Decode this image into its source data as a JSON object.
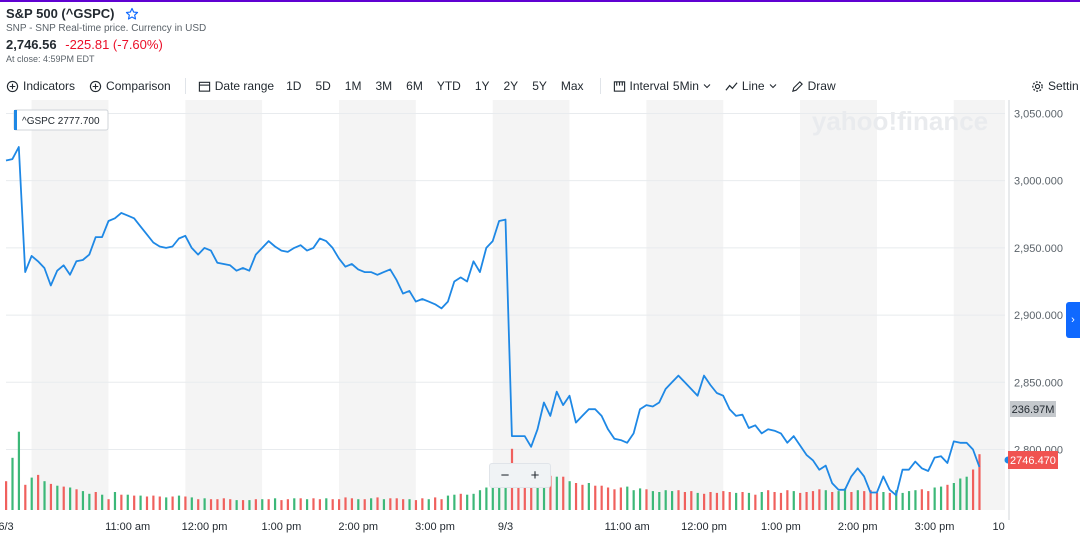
{
  "header": {
    "title": "S&P 500 (^GSPC)",
    "subtitle": "SNP - SNP Real-time price. Currency in USD",
    "price": "2,746.56",
    "change": "-225.81 (-7.60%)",
    "close_time": "At close: 4:59PM EDT"
  },
  "toolbar": {
    "indicators": "Indicators",
    "comparison": "Comparison",
    "date_range": "Date range",
    "ranges": [
      "1D",
      "5D",
      "1M",
      "3M",
      "6M",
      "YTD",
      "1Y",
      "2Y",
      "5Y",
      "Max"
    ],
    "interval_label": "Interval",
    "interval_value": "5Min",
    "chart_type": "Line",
    "draw": "Draw",
    "settings": "Settin"
  },
  "watermark": "yahoo!finance",
  "zoom": {
    "minus": "−",
    "plus": "+"
  },
  "colors": {
    "line": "#1e88e5",
    "vol_up": "#3cb878",
    "vol_down": "#f0605d",
    "price_badge": "#f05350",
    "shade": "#f4f4f4"
  },
  "chart_data": {
    "type": "line",
    "series": [
      {
        "name": "^GSPC",
        "tooltip": "^GSPC  2777.700"
      }
    ],
    "ylim": [
      2755,
      3060
    ],
    "y_ticks": [
      3050,
      3000,
      2950,
      2900,
      2850,
      2800
    ],
    "y_tick_labels": [
      "3,050.000",
      "3,000.000",
      "2,950.000",
      "2,900.000",
      "2,850.000",
      "2,800.000"
    ],
    "x_ticks": [
      {
        "label": "6/3",
        "x": 0
      },
      {
        "label": "11:00 am",
        "x": 19
      },
      {
        "label": "12:00 pm",
        "x": 31
      },
      {
        "label": "1:00 pm",
        "x": 43
      },
      {
        "label": "2:00 pm",
        "x": 55
      },
      {
        "label": "3:00 pm",
        "x": 67
      },
      {
        "label": "9/3",
        "x": 78
      },
      {
        "label": "11:00 am",
        "x": 97
      },
      {
        "label": "12:00 pm",
        "x": 109
      },
      {
        "label": "1:00 pm",
        "x": 121
      },
      {
        "label": "2:00 pm",
        "x": 133
      },
      {
        "label": "3:00 pm",
        "x": 145
      },
      {
        "label": "10",
        "x": 155
      }
    ],
    "x_max": 156,
    "bands": [
      [
        4,
        16
      ],
      [
        28,
        40
      ],
      [
        52,
        64
      ],
      [
        76,
        88
      ],
      [
        100,
        112
      ],
      [
        124,
        136
      ],
      [
        148,
        156
      ]
    ],
    "price_values": [
      3015,
      3016,
      3025,
      2932,
      2944,
      2940,
      2935,
      2922,
      2933,
      2937,
      2930,
      2940,
      2941,
      2945,
      2958,
      2958,
      2970,
      2972,
      2976,
      2974,
      2972,
      2966,
      2960,
      2954,
      2951,
      2950,
      2951,
      2957,
      2959,
      2950,
      2945,
      2950,
      2948,
      2939,
      2938,
      2937,
      2933,
      2935,
      2933,
      2945,
      2950,
      2955,
      2951,
      2948,
      2947,
      2950,
      2952,
      2948,
      2950,
      2957,
      2955,
      2950,
      2942,
      2936,
      2938,
      2934,
      2932,
      2932,
      2930,
      2932,
      2934,
      2926,
      2916,
      2918,
      2910,
      2912,
      2910,
      2908,
      2905,
      2910,
      2925,
      2928,
      2925,
      2940,
      2932,
      2950,
      2955,
      2970,
      2971,
      2810,
      2810,
      2810,
      2802,
      2815,
      2835,
      2825,
      2843,
      2833,
      2840,
      2820,
      2825,
      2830,
      2830,
      2825,
      2815,
      2808,
      2807,
      2805,
      2812,
      2830,
      2833,
      2832,
      2835,
      2845,
      2850,
      2855,
      2850,
      2845,
      2840,
      2855,
      2848,
      2842,
      2840,
      2830,
      2825,
      2826,
      2816,
      2818,
      2812,
      2815,
      2814,
      2812,
      2805,
      2810,
      2803,
      2796,
      2792,
      2785,
      2788,
      2775,
      2770,
      2770,
      2780,
      2786,
      2780,
      2768,
      2768,
      2780,
      2770,
      2766,
      2785,
      2785,
      2791,
      2786,
      2784,
      2794,
      2795,
      2790,
      2806,
      2805,
      2805,
      2800,
      2787
    ],
    "current_price": "2746.470",
    "volume_label": "236.97M",
    "volume_values": [
      0.32,
      0.58,
      0.87,
      0.28,
      0.36,
      0.39,
      0.32,
      0.29,
      0.27,
      0.26,
      0.25,
      0.23,
      0.21,
      0.18,
      0.2,
      0.17,
      0.12,
      0.2,
      0.17,
      0.17,
      0.16,
      0.16,
      0.15,
      0.16,
      0.15,
      0.14,
      0.15,
      0.16,
      0.15,
      0.14,
      0.12,
      0.13,
      0.12,
      0.12,
      0.13,
      0.12,
      0.11,
      0.11,
      0.11,
      0.12,
      0.12,
      0.12,
      0.13,
      0.11,
      0.12,
      0.13,
      0.13,
      0.12,
      0.13,
      0.12,
      0.13,
      0.12,
      0.12,
      0.14,
      0.13,
      0.12,
      0.12,
      0.13,
      0.14,
      0.12,
      0.13,
      0.13,
      0.12,
      0.12,
      0.11,
      0.13,
      0.12,
      0.14,
      0.12,
      0.16,
      0.17,
      0.18,
      0.17,
      0.18,
      0.22,
      0.25,
      0.27,
      0.33,
      0.48,
      0.68,
      0.28,
      0.3,
      0.29,
      0.33,
      0.37,
      0.38,
      0.37,
      0.37,
      0.32,
      0.3,
      0.28,
      0.3,
      0.27,
      0.27,
      0.25,
      0.23,
      0.25,
      0.26,
      0.22,
      0.24,
      0.23,
      0.21,
      0.2,
      0.22,
      0.21,
      0.22,
      0.2,
      0.21,
      0.19,
      0.18,
      0.2,
      0.19,
      0.21,
      0.2,
      0.19,
      0.2,
      0.19,
      0.17,
      0.2,
      0.22,
      0.2,
      0.19,
      0.22,
      0.21,
      0.19,
      0.2,
      0.21,
      0.23,
      0.22,
      0.2,
      0.21,
      0.24,
      0.2,
      0.22,
      0.21,
      0.22,
      0.19,
      0.2,
      0.19,
      0.22,
      0.19,
      0.21,
      0.22,
      0.23,
      0.21,
      0.25,
      0.26,
      0.28,
      0.3,
      0.35,
      0.37,
      0.45,
      0.62
    ],
    "volume_colors": [
      "d",
      "u",
      "u",
      "d",
      "u",
      "d",
      "u",
      "d",
      "u",
      "d",
      "u",
      "d",
      "u",
      "u",
      "d",
      "u",
      "d",
      "u",
      "d",
      "u",
      "d",
      "u",
      "d",
      "d",
      "d",
      "u",
      "d",
      "u",
      "d",
      "u",
      "d",
      "u",
      "d",
      "d",
      "d",
      "d",
      "u",
      "d",
      "u",
      "d",
      "u",
      "d",
      "u",
      "d",
      "d",
      "u",
      "d",
      "u",
      "d",
      "d",
      "u",
      "d",
      "d",
      "d",
      "d",
      "u",
      "d",
      "u",
      "d",
      "u",
      "d",
      "d",
      "d",
      "u",
      "d",
      "d",
      "u",
      "d",
      "d",
      "u",
      "u",
      "d",
      "u",
      "u",
      "u",
      "u",
      "u",
      "u",
      "u",
      "d",
      "d",
      "d",
      "d",
      "u",
      "u",
      "d",
      "u",
      "d",
      "u",
      "d",
      "d",
      "u",
      "d",
      "d",
      "d",
      "d",
      "d",
      "u",
      "u",
      "u",
      "d",
      "u",
      "u",
      "u",
      "u",
      "d",
      "d",
      "d",
      "u",
      "d",
      "d",
      "d",
      "d",
      "d",
      "u",
      "d",
      "u",
      "d",
      "u",
      "d",
      "d",
      "d",
      "d",
      "u",
      "d",
      "d",
      "d",
      "d",
      "u",
      "d",
      "u",
      "u",
      "d",
      "u",
      "d",
      "d",
      "d",
      "u",
      "d",
      "u",
      "u",
      "u",
      "u",
      "d",
      "d",
      "u",
      "u",
      "d",
      "u",
      "u",
      "u",
      "d",
      "d"
    ]
  }
}
